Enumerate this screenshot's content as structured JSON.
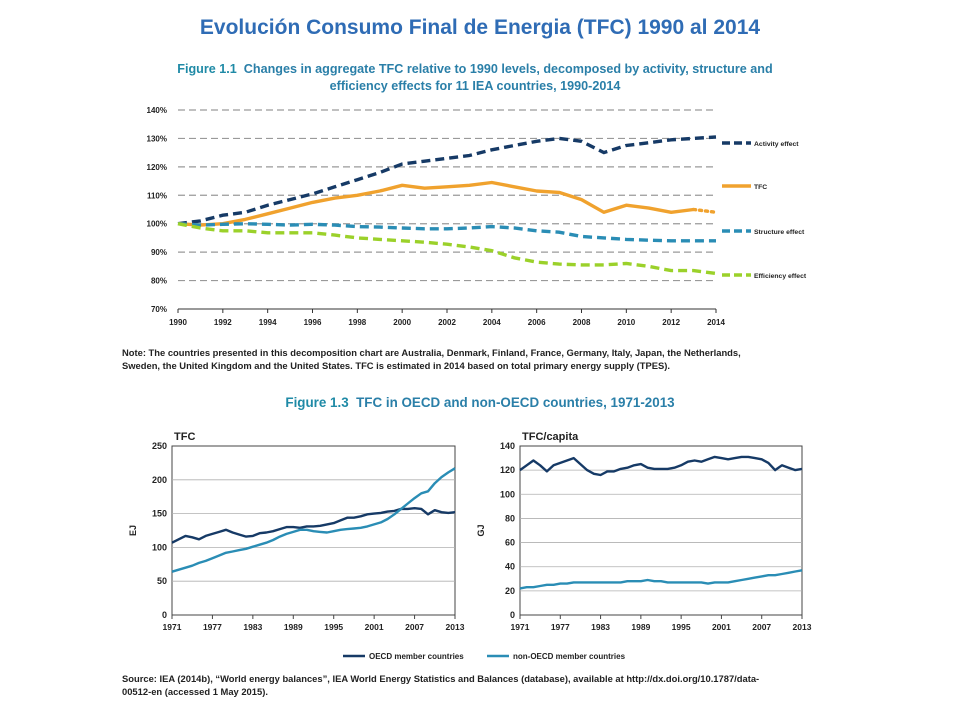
{
  "page": {
    "title": "Evolución  Consumo Final de Energia (TFC)  1990 al 2014",
    "colors": {
      "title": "#2f6cb5",
      "figure_title": "#2a7fa8",
      "navy": "#163a66",
      "orange": "#f0a22e",
      "teal": "#2a8db5",
      "green": "#9bd12a"
    }
  },
  "figure1": {
    "label": "Figure 1.1",
    "title_line1": "Changes in aggregate TFC relative to 1990 levels, decomposed by activity, structure and",
    "title_line2": "efficiency effects for 11 IEA countries, 1990-2014",
    "note_line1": "Note: The countries presented in this decomposition chart are Australia, Denmark, Finland, France, Germany, Italy, Japan, the Netherlands,",
    "note_line2": "Sweden, the United Kingdom and the United States. TFC is estimated in 2014 based on total primary energy supply (TPES)."
  },
  "figure3": {
    "label": "Figure 1.3",
    "title": "TFC in OECD and non-OECD countries, 1971-2013",
    "legend": {
      "oecd": "OECD member countries",
      "non_oecd": "non-OECD member countries"
    },
    "source_line1": "Source: IEA (2014b), “World energy balances”, IEA World Energy Statistics and Balances (database), available at http://dx.doi.org/10.1787/data-",
    "source_line2": "00512-en (accessed 1 May 2015)."
  },
  "chart_data": [
    {
      "type": "line",
      "x": [
        1990,
        1991,
        1992,
        1993,
        1994,
        1995,
        1996,
        1997,
        1998,
        1999,
        2000,
        2001,
        2002,
        2003,
        2004,
        2005,
        2006,
        2007,
        2008,
        2009,
        2010,
        2011,
        2012,
        2013,
        2014
      ],
      "xticks": [
        "1990",
        "1992",
        "1994",
        "1996",
        "1998",
        "2000",
        "2002",
        "2004",
        "2006",
        "2008",
        "2010",
        "2012",
        "2014"
      ],
      "yticks": [
        "70%",
        "80%",
        "90%",
        "100%",
        "110%",
        "120%",
        "130%",
        "140%"
      ],
      "ylim": [
        70,
        140
      ],
      "grid": "horizontal dashed",
      "legend_position": "right",
      "series": [
        {
          "name": "Activity effect",
          "style": "dashed",
          "color": "#163a66",
          "values": [
            100,
            101,
            103,
            104,
            106.5,
            108.5,
            110.5,
            113,
            115.5,
            118,
            121,
            122,
            123,
            124,
            126,
            127.5,
            129,
            130,
            129,
            125,
            127.5,
            128.5,
            129.5,
            130,
            130.5
          ]
        },
        {
          "name": "TFC",
          "style": "solid-then-dotted",
          "color": "#f0a22e",
          "values": [
            100,
            99.5,
            100,
            101.5,
            103.5,
            105.5,
            107.5,
            109,
            110,
            111.5,
            113.5,
            112.5,
            113,
            113.5,
            114.5,
            113,
            111.5,
            111,
            108.5,
            104,
            106.5,
            105.5,
            104,
            105,
            104
          ]
        },
        {
          "name": "Structure effect",
          "style": "dashed",
          "color": "#2a8db5",
          "values": [
            100,
            99.5,
            99.8,
            100,
            99.8,
            99.5,
            99.8,
            99.5,
            99,
            98.8,
            98.5,
            98.2,
            98.2,
            98.5,
            99,
            98.5,
            97.5,
            97,
            95.5,
            95,
            94.5,
            94.2,
            94,
            94,
            94
          ]
        },
        {
          "name": "Efficiency effect",
          "style": "dashed",
          "color": "#9bd12a",
          "values": [
            100,
            98.5,
            97.5,
            97.5,
            96.8,
            96.8,
            96.8,
            96,
            95,
            94.5,
            94,
            93.5,
            92.8,
            91.8,
            90.5,
            88,
            86.5,
            85.8,
            85.5,
            85.5,
            86,
            85,
            83.5,
            83.5,
            82.5
          ]
        }
      ]
    },
    {
      "type": "line",
      "title": "TFC",
      "ylabel": "EJ",
      "x": [
        1971,
        1972,
        1973,
        1974,
        1975,
        1976,
        1977,
        1978,
        1979,
        1980,
        1981,
        1982,
        1983,
        1984,
        1985,
        1986,
        1987,
        1988,
        1989,
        1990,
        1991,
        1992,
        1993,
        1994,
        1995,
        1996,
        1997,
        1998,
        1999,
        2000,
        2001,
        2002,
        2003,
        2004,
        2005,
        2006,
        2007,
        2008,
        2009,
        2010,
        2011,
        2012,
        2013
      ],
      "xticks": [
        "1971",
        "1977",
        "1983",
        "1989",
        "1995",
        "2001",
        "2007",
        "2013"
      ],
      "yticks": [
        "0",
        "50",
        "100",
        "150",
        "200",
        "250"
      ],
      "ylim": [
        0,
        250
      ],
      "series": [
        {
          "name": "OECD member countries",
          "color": "#163a66",
          "values": [
            107,
            112,
            117,
            115,
            112,
            117,
            120,
            123,
            126,
            122,
            119,
            116,
            117,
            121,
            122,
            124,
            127,
            130,
            130,
            129,
            131,
            131,
            132,
            134,
            136,
            140,
            144,
            144,
            146,
            149,
            150,
            151,
            153,
            154,
            157,
            157,
            158,
            157,
            149,
            155,
            152,
            151,
            152
          ]
        },
        {
          "name": "non-OECD member countries",
          "color": "#2a8db5",
          "values": [
            64,
            67,
            70,
            73,
            77,
            80,
            84,
            88,
            92,
            94,
            96,
            98,
            101,
            104,
            107,
            111,
            116,
            120,
            123,
            126,
            126,
            124,
            123,
            122,
            124,
            126,
            127,
            128,
            129,
            131,
            134,
            137,
            142,
            149,
            157,
            165,
            173,
            180,
            183,
            195,
            204,
            211,
            217
          ]
        }
      ]
    },
    {
      "type": "line",
      "title": "TFC/capita",
      "ylabel": "GJ",
      "x": [
        1971,
        1972,
        1973,
        1974,
        1975,
        1976,
        1977,
        1978,
        1979,
        1980,
        1981,
        1982,
        1983,
        1984,
        1985,
        1986,
        1987,
        1988,
        1989,
        1990,
        1991,
        1992,
        1993,
        1994,
        1995,
        1996,
        1997,
        1998,
        1999,
        2000,
        2001,
        2002,
        2003,
        2004,
        2005,
        2006,
        2007,
        2008,
        2009,
        2010,
        2011,
        2012,
        2013
      ],
      "xticks": [
        "1971",
        "1977",
        "1983",
        "1989",
        "1995",
        "2001",
        "2007",
        "2013"
      ],
      "yticks": [
        "0",
        "20",
        "40",
        "60",
        "80",
        "100",
        "120",
        "140"
      ],
      "ylim": [
        0,
        140
      ],
      "series": [
        {
          "name": "OECD member countries",
          "color": "#163a66",
          "values": [
            120,
            124,
            128,
            124,
            119,
            124,
            126,
            128,
            130,
            125,
            120,
            117,
            116,
            119,
            119,
            121,
            122,
            124,
            125,
            122,
            121,
            121,
            121,
            122,
            124,
            127,
            128,
            127,
            129,
            131,
            130,
            129,
            130,
            131,
            131,
            130,
            129,
            126,
            120,
            124,
            122,
            120,
            121
          ]
        },
        {
          "name": "non-OECD member countries",
          "color": "#2a8db5",
          "values": [
            22,
            23,
            23,
            24,
            25,
            25,
            26,
            26,
            27,
            27,
            27,
            27,
            27,
            27,
            27,
            27,
            28,
            28,
            28,
            29,
            28,
            28,
            27,
            27,
            27,
            27,
            27,
            27,
            26,
            27,
            27,
            27,
            28,
            29,
            30,
            31,
            32,
            33,
            33,
            34,
            35,
            36,
            37
          ]
        }
      ]
    }
  ]
}
